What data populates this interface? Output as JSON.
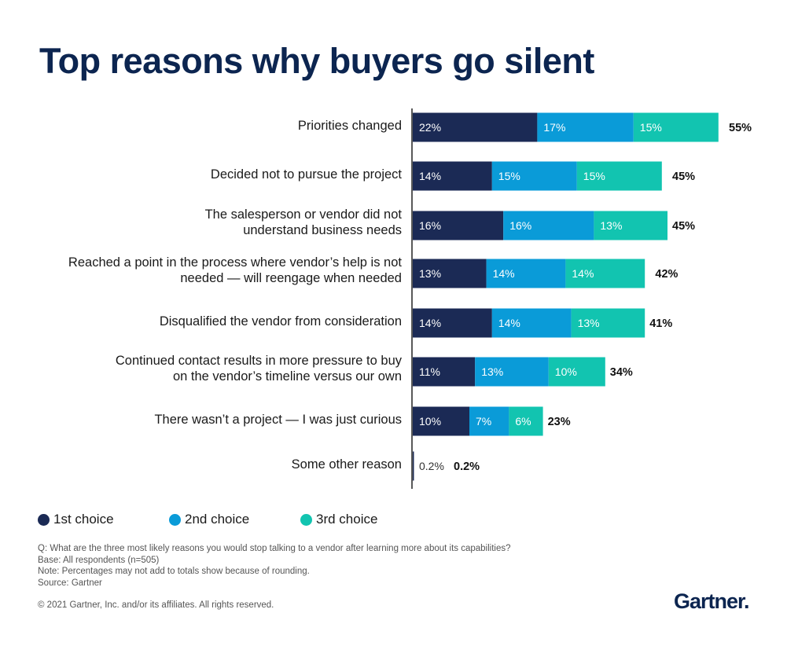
{
  "chart_data": {
    "type": "bar",
    "orientation": "horizontal",
    "stacked": true,
    "title": "Top reasons why buyers go silent",
    "categories": [
      [
        "Priorities changed"
      ],
      [
        "Decided not to pursue the project"
      ],
      [
        "The salesperson or vendor did not",
        "understand business needs"
      ],
      [
        "Reached a point in the process where vendor’s help is not",
        "needed — will reengage when needed"
      ],
      [
        "Disqualified the vendor from consideration"
      ],
      [
        "Continued contact results in more pressure to buy",
        "on the vendor’s timeline versus our own"
      ],
      [
        "There wasn’t a project — I was just curious"
      ],
      [
        "Some other reason"
      ]
    ],
    "series": [
      {
        "name": "1st choice",
        "color": "#1b2a55",
        "values": [
          22,
          14,
          16,
          13,
          14,
          11,
          10,
          0.2
        ]
      },
      {
        "name": "2nd choice",
        "color": "#0a9bd8",
        "values": [
          17,
          15,
          16,
          14,
          14,
          13,
          7,
          0
        ]
      },
      {
        "name": "3rd choice",
        "color": "#12c4b0",
        "values": [
          15,
          15,
          13,
          14,
          13,
          10,
          6,
          0
        ]
      }
    ],
    "segment_labels": [
      [
        "22%",
        "17%",
        "15%"
      ],
      [
        "14%",
        "15%",
        "15%"
      ],
      [
        "16%",
        "16%",
        "13%"
      ],
      [
        "13%",
        "14%",
        "14%"
      ],
      [
        "14%",
        "14%",
        "13%"
      ],
      [
        "11%",
        "13%",
        "10%"
      ],
      [
        "10%",
        "7%",
        "6%"
      ],
      [
        "0.2%",
        "",
        ""
      ]
    ],
    "totals": [
      "55%",
      "45%",
      "45%",
      "42%",
      "41%",
      "34%",
      "23%",
      "0.2%"
    ],
    "total_values": [
      55,
      45,
      45,
      42,
      41,
      34,
      23,
      0.2
    ],
    "legend_position": "bottom-left",
    "grid": false
  },
  "legend": [
    "1st choice",
    "2nd choice",
    "3rd choice"
  ],
  "notes": [
    "Q: What are the three most likely reasons you would stop talking to a vendor after learning more about its capabilities?",
    "Base: All respondents (n=505)",
    "Note: Percentages may not add to totals show because of rounding.",
    "Source: Gartner"
  ],
  "copyright": "© 2021 Gartner, Inc. and/or its affiliates. All rights reserved.",
  "logo": "Gartner."
}
